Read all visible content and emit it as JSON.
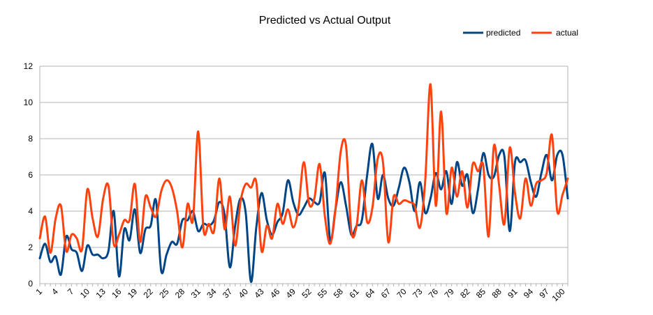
{
  "chart_data": {
    "type": "line",
    "title": "Predicted vs Actual Output",
    "xlabel": "",
    "ylabel": "",
    "ylim": [
      0,
      12
    ],
    "yticks": [
      0,
      2,
      4,
      6,
      8,
      10,
      12
    ],
    "grid": true,
    "smooth": true,
    "legend_position": "top-right",
    "x": [
      1,
      2,
      3,
      4,
      5,
      6,
      7,
      8,
      9,
      10,
      11,
      12,
      13,
      14,
      15,
      16,
      17,
      18,
      19,
      20,
      21,
      22,
      23,
      24,
      25,
      26,
      27,
      28,
      29,
      30,
      31,
      32,
      33,
      34,
      35,
      36,
      37,
      38,
      39,
      40,
      41,
      42,
      43,
      44,
      45,
      46,
      47,
      48,
      49,
      50,
      51,
      52,
      53,
      54,
      55,
      56,
      57,
      58,
      59,
      60,
      61,
      62,
      63,
      64,
      65,
      66,
      67,
      68,
      69,
      70,
      71,
      72,
      73,
      74,
      75,
      76,
      77,
      78,
      79,
      80,
      81,
      82,
      83,
      84,
      85,
      86,
      87,
      88,
      89,
      90,
      91,
      92,
      93,
      94,
      95,
      96,
      97,
      98,
      99,
      100,
      101
    ],
    "xtick_labels": [
      "1",
      "4",
      "7",
      "10",
      "13",
      "16",
      "19",
      "22",
      "25",
      "28",
      "31",
      "34",
      "37",
      "40",
      "43",
      "46",
      "49",
      "52",
      "55",
      "58",
      "61",
      "64",
      "67",
      "70",
      "73",
      "76",
      "79",
      "82",
      "85",
      "88",
      "91",
      "94",
      "97",
      "100"
    ],
    "series": [
      {
        "name": "predicted",
        "color": "#004586",
        "values": [
          1.4,
          2.2,
          1.2,
          1.5,
          0.5,
          2.6,
          1.9,
          1.7,
          0.7,
          2.1,
          1.6,
          1.6,
          1.4,
          1.8,
          4.0,
          0.4,
          3.0,
          2.4,
          4.1,
          1.7,
          3.0,
          3.2,
          4.6,
          0.7,
          1.6,
          2.3,
          2.2,
          3.5,
          3.5,
          4.0,
          2.9,
          3.3,
          3.2,
          3.5,
          4.5,
          3.8,
          0.9,
          3.2,
          4.7,
          3.9,
          0.1,
          3.1,
          5.0,
          3.5,
          2.7,
          3.4,
          3.9,
          5.7,
          4.5,
          3.8,
          4.2,
          4.7,
          4.5,
          4.5,
          6.1,
          2.4,
          4.1,
          5.6,
          4.3,
          2.7,
          3.2,
          3.5,
          6.0,
          7.7,
          4.7,
          6.0,
          4.7,
          4.3,
          5.3,
          6.4,
          5.6,
          4.0,
          5.6,
          3.9,
          4.7,
          6.1,
          5.2,
          6.2,
          4.4,
          6.7,
          5.4,
          6.0,
          3.9,
          5.2,
          7.2,
          6.0,
          5.9,
          7.1,
          7.0,
          2.9,
          6.7,
          6.7,
          6.8,
          5.6,
          4.8,
          6.1,
          7.1,
          5.7,
          7.1,
          7.1,
          4.7
        ]
      },
      {
        "name": "actual",
        "color": "#ff420e",
        "values": [
          2.5,
          3.7,
          1.7,
          3.6,
          4.3,
          1.8,
          2.7,
          2.5,
          1.9,
          5.2,
          3.6,
          2.6,
          4.7,
          5.4,
          2.2,
          2.7,
          3.5,
          3.5,
          5.5,
          2.3,
          4.8,
          4.2,
          3.7,
          5.1,
          5.7,
          5.3,
          4.0,
          2.0,
          4.4,
          3.5,
          8.4,
          3.0,
          3.3,
          2.9,
          5.8,
          3.0,
          4.8,
          2.1,
          4.5,
          5.5,
          5.3,
          5.6,
          1.8,
          3.2,
          2.5,
          4.4,
          3.3,
          4.1,
          3.1,
          4.2,
          6.7,
          4.4,
          4.7,
          6.6,
          3.7,
          2.2,
          4.1,
          7.3,
          7.6,
          2.9,
          3.2,
          5.7,
          3.4,
          4.2,
          6.9,
          6.7,
          2.3,
          4.8,
          4.4,
          4.6,
          4.5,
          4.3,
          3.1,
          5.7,
          11.0,
          4.3,
          9.5,
          3.9,
          6.4,
          4.8,
          6.2,
          4.2,
          6.6,
          6.2,
          6.5,
          2.6,
          7.6,
          5.4,
          3.3,
          7.5,
          5.0,
          3.6,
          5.8,
          4.3,
          5.5,
          5.7,
          6.1,
          8.2,
          4.0,
          4.9,
          5.8
        ]
      }
    ]
  }
}
